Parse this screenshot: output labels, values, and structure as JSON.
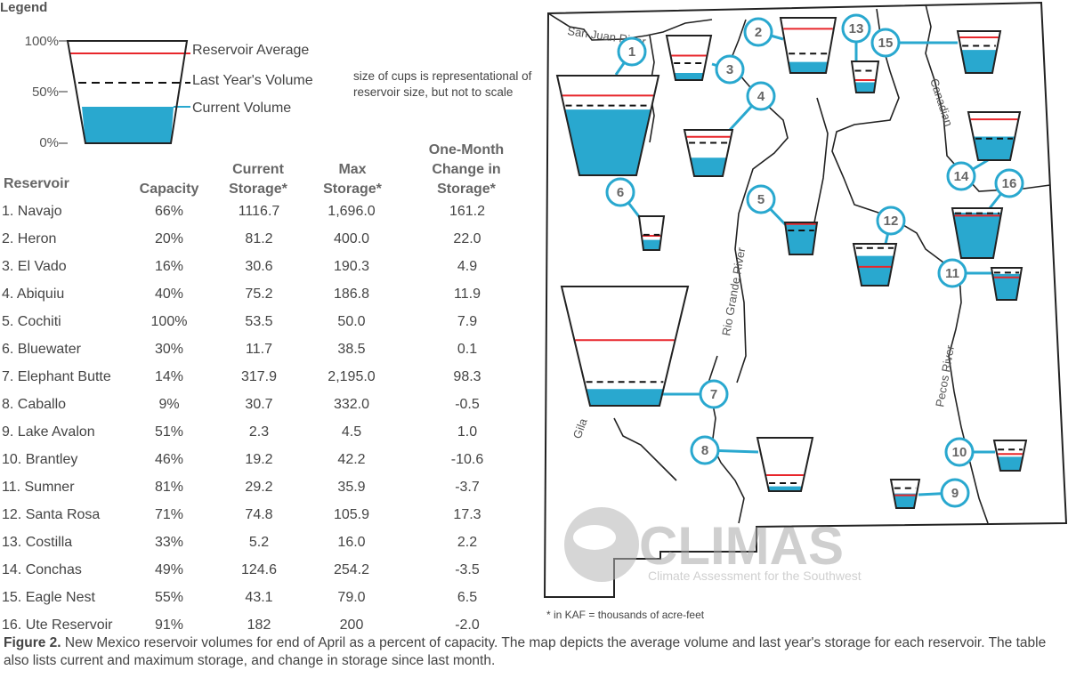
{
  "legend": {
    "title": "Legend",
    "pct_100": "100%",
    "pct_50": "50%",
    "pct_0": "0%",
    "reservoir_average": "Reservoir Average",
    "last_year": "Last Year's Volume",
    "current_volume": "Current Volume",
    "note": "size of cups is representational of reservoir size, but not to scale"
  },
  "colors": {
    "water": "#29a8cf",
    "average": "#e8262b",
    "lastyear": "#111111",
    "outline": "#222222"
  },
  "table": {
    "headers": {
      "reservoir": "Reservoir",
      "capacity": "Capacity",
      "current_1": "Current",
      "current_2": "Storage*",
      "max_1": "Max",
      "max_2": "Storage*",
      "change_1": "One-Month",
      "change_2": "Change in",
      "change_3": "Storage*"
    }
  },
  "chart_data": {
    "type": "table",
    "title": "",
    "columns": [
      "Reservoir",
      "Capacity",
      "Current Storage*",
      "Max Storage*",
      "One-Month Change in Storage*"
    ],
    "rows": [
      {
        "name": "1. Navajo",
        "capacity": "66%",
        "current": "1116.7",
        "max": "1,696.0",
        "change": "161.2"
      },
      {
        "name": "2. Heron",
        "capacity": "20%",
        "current": "81.2",
        "max": "400.0",
        "change": "22.0"
      },
      {
        "name": "3. El Vado",
        "capacity": "16%",
        "current": "30.6",
        "max": "190.3",
        "change": "4.9"
      },
      {
        "name": "4. Abiquiu",
        "capacity": "40%",
        "current": "75.2",
        "max": "186.8",
        "change": "11.9"
      },
      {
        "name": "5. Cochiti",
        "capacity": "100%",
        "current": "53.5",
        "max": "50.0",
        "change": "7.9"
      },
      {
        "name": "6. Bluewater",
        "capacity": "30%",
        "current": "11.7",
        "max": "38.5",
        "change": "0.1"
      },
      {
        "name": "7. Elephant Butte",
        "capacity": "14%",
        "current": "317.9",
        "max": "2,195.0",
        "change": "98.3"
      },
      {
        "name": "8. Caballo",
        "capacity": "9%",
        "current": "30.7",
        "max": "332.0",
        "change": "-0.5"
      },
      {
        "name": "9. Lake Avalon",
        "capacity": "51%",
        "current": "2.3",
        "max": "4.5",
        "change": "1.0"
      },
      {
        "name": "10. Brantley",
        "capacity": "46%",
        "current": "19.2",
        "max": "42.2",
        "change": "-10.6"
      },
      {
        "name": "11. Sumner",
        "capacity": "81%",
        "current": "29.2",
        "max": "35.9",
        "change": "-3.7"
      },
      {
        "name": "12. Santa Rosa",
        "capacity": "71%",
        "current": "74.8",
        "max": "105.9",
        "change": "17.3"
      },
      {
        "name": "13. Costilla",
        "capacity": "33%",
        "current": "5.2",
        "max": "16.0",
        "change": "2.2"
      },
      {
        "name": "14. Conchas",
        "capacity": "49%",
        "current": "124.6",
        "max": "254.2",
        "change": "-3.5"
      },
      {
        "name": "15. Eagle Nest",
        "capacity": "55%",
        "current": "43.1",
        "max": "79.0",
        "change": "6.5"
      },
      {
        "name": "16. Ute Reservoir",
        "capacity": "91%",
        "current": "182",
        "max": "200",
        "change": "-2.0"
      }
    ],
    "cups": [
      {
        "id": "1",
        "fill": 0.66,
        "avg": 0.8,
        "last": 0.7
      },
      {
        "id": "2",
        "fill": 0.2,
        "avg": 0.8,
        "last": 0.35
      },
      {
        "id": "3",
        "fill": 0.16,
        "avg": 0.55,
        "last": 0.38
      },
      {
        "id": "4",
        "fill": 0.4,
        "avg": 0.85,
        "last": 0.72
      },
      {
        "id": "5",
        "fill": 1.0,
        "avg": 0.95,
        "last": 0.75
      },
      {
        "id": "6",
        "fill": 0.3,
        "avg": 0.42,
        "last": 0.45
      },
      {
        "id": "7",
        "fill": 0.14,
        "avg": 0.55,
        "last": 0.2
      },
      {
        "id": "8",
        "fill": 0.09,
        "avg": 0.3,
        "last": 0.15
      },
      {
        "id": "9",
        "fill": 0.51,
        "avg": 0.45,
        "last": 0.7
      },
      {
        "id": "10",
        "fill": 0.46,
        "avg": 0.55,
        "last": 0.7
      },
      {
        "id": "11",
        "fill": 0.81,
        "avg": 0.7,
        "last": 0.85
      },
      {
        "id": "12",
        "fill": 0.71,
        "avg": 0.45,
        "last": 0.9
      },
      {
        "id": "13",
        "fill": 0.33,
        "avg": 0.4,
        "last": 0.7
      },
      {
        "id": "14",
        "fill": 0.49,
        "avg": 0.85,
        "last": 0.45
      },
      {
        "id": "15",
        "fill": 0.55,
        "avg": 0.85,
        "last": 0.65
      },
      {
        "id": "16",
        "fill": 0.91,
        "avg": 0.85,
        "last": 0.9
      }
    ]
  },
  "map": {
    "rivers": {
      "san_juan": "San Juan River",
      "canadian": "Canadian",
      "rio_grande": "Rio Grande River",
      "pecos": "Pecos River",
      "gila": "Gila"
    },
    "logo": {
      "name": "CLIMAS",
      "tagline": "Climate Assessment for the Southwest"
    }
  },
  "footnote": "* in KAF = thousands of acre-feet",
  "caption": {
    "label": "Figure 2.",
    "text": " New Mexico reservoir volumes for end of April as a percent of capacity. The map depicts the average volume and last year's storage for each reservoir. The table also lists current and maximum storage, and change in storage since last month."
  }
}
